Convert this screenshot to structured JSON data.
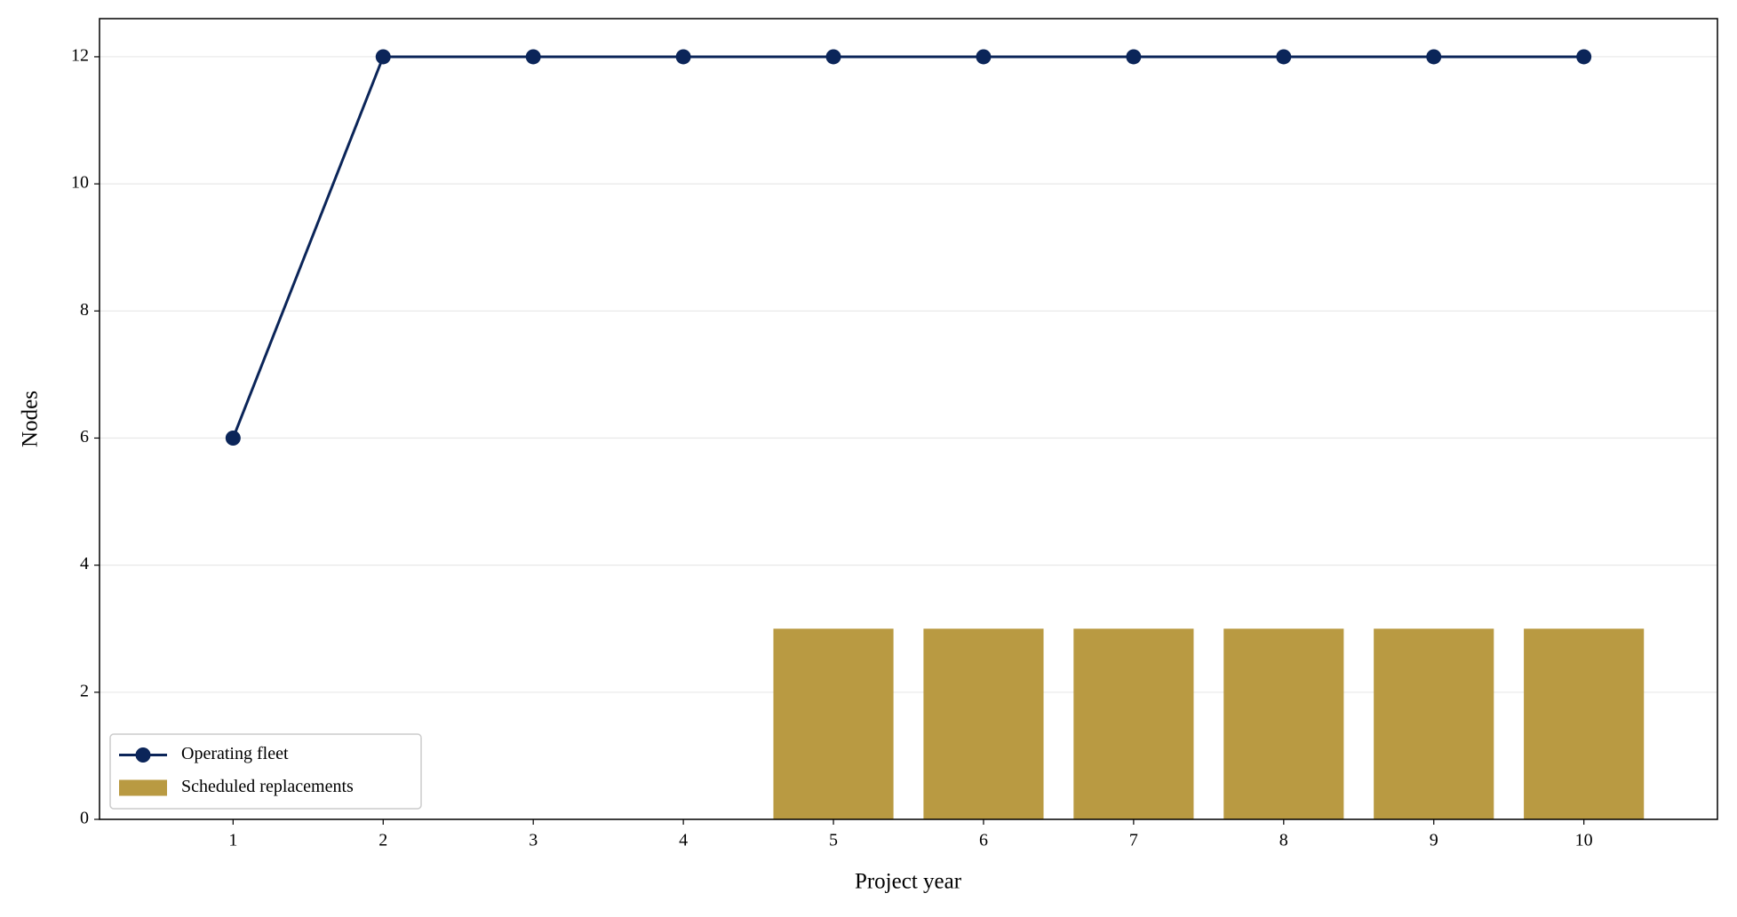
{
  "chart_data": {
    "type": "combo",
    "xlabel": "Project year",
    "ylabel": "Nodes",
    "x": [
      1,
      2,
      3,
      4,
      5,
      6,
      7,
      8,
      9,
      10
    ],
    "series": [
      {
        "name": "Operating fleet",
        "type": "line",
        "color": "#0b2559",
        "values": [
          6,
          12,
          12,
          12,
          12,
          12,
          12,
          12,
          12,
          12
        ]
      },
      {
        "name": "Scheduled replacements",
        "type": "bar",
        "color": "#b99a42",
        "values": [
          0,
          0,
          0,
          0,
          3,
          3,
          3,
          3,
          3,
          3
        ]
      }
    ],
    "xlim": [
      0.11,
      10.89
    ],
    "xticks": [
      1,
      2,
      3,
      4,
      5,
      6,
      7,
      8,
      9,
      10
    ],
    "ylim": [
      0,
      12.6
    ],
    "yticks": [
      0,
      2,
      4,
      6,
      8,
      10,
      12
    ],
    "grid": true,
    "legend": "lower left"
  }
}
